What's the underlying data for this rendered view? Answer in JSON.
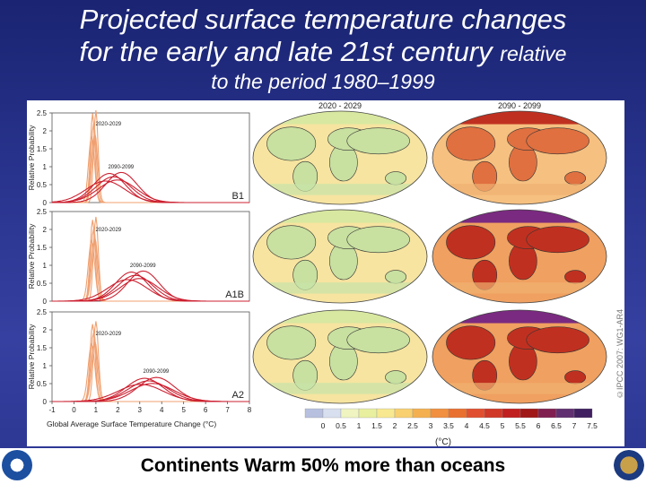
{
  "title": {
    "line1": "Projected surface temperature changes",
    "line2": "for the early and late 21st century",
    "line2_small": "relative",
    "line3": "to the period 1980–1999"
  },
  "caption": "Continents Warm 50% more than oceans",
  "credit": "©IPCC 2007: WG1-AR4",
  "colors": {
    "early": "#f0a070",
    "late": "#cc2030",
    "accent": "#2a3590"
  },
  "chart_data": {
    "type": "line",
    "xlabel": "Global Average Surface Temperature Change (°C)",
    "ylabel": "Relative Probability",
    "xlim": [
      -1,
      8
    ],
    "ylim": [
      0,
      2.5
    ],
    "x_ticks": [
      "-1",
      "0",
      "1",
      "2",
      "3",
      "4",
      "5",
      "6",
      "7",
      "8"
    ],
    "y_ticks": [
      "0",
      "0.5",
      "1",
      "1.5",
      "2",
      "2.5"
    ],
    "panels": [
      {
        "scenario": "B1",
        "early_label": "2020-2029",
        "late_label": "2090-2099",
        "early_peak": [
          0.9,
          2.3
        ],
        "late_peak": [
          1.8,
          0.75
        ]
      },
      {
        "scenario": "A1B",
        "early_label": "2020-2029",
        "late_label": "2090-2099",
        "early_peak": [
          0.9,
          2.1
        ],
        "late_peak": [
          2.8,
          0.75
        ]
      },
      {
        "scenario": "A2",
        "early_label": "2020-2029",
        "late_label": "2090-2099",
        "early_peak": [
          0.9,
          2.0
        ],
        "late_peak": [
          3.4,
          0.6
        ]
      }
    ],
    "map_columns": [
      "2020 - 2029",
      "2090 - 2099"
    ],
    "colorbar": {
      "labels": [
        "0",
        "0.5",
        "1",
        "1.5",
        "2",
        "2.5",
        "3",
        "3.5",
        "4",
        "4.5",
        "5",
        "5.5",
        "6",
        "6.5",
        "7",
        "7.5"
      ],
      "unit": "(°C)"
    }
  }
}
